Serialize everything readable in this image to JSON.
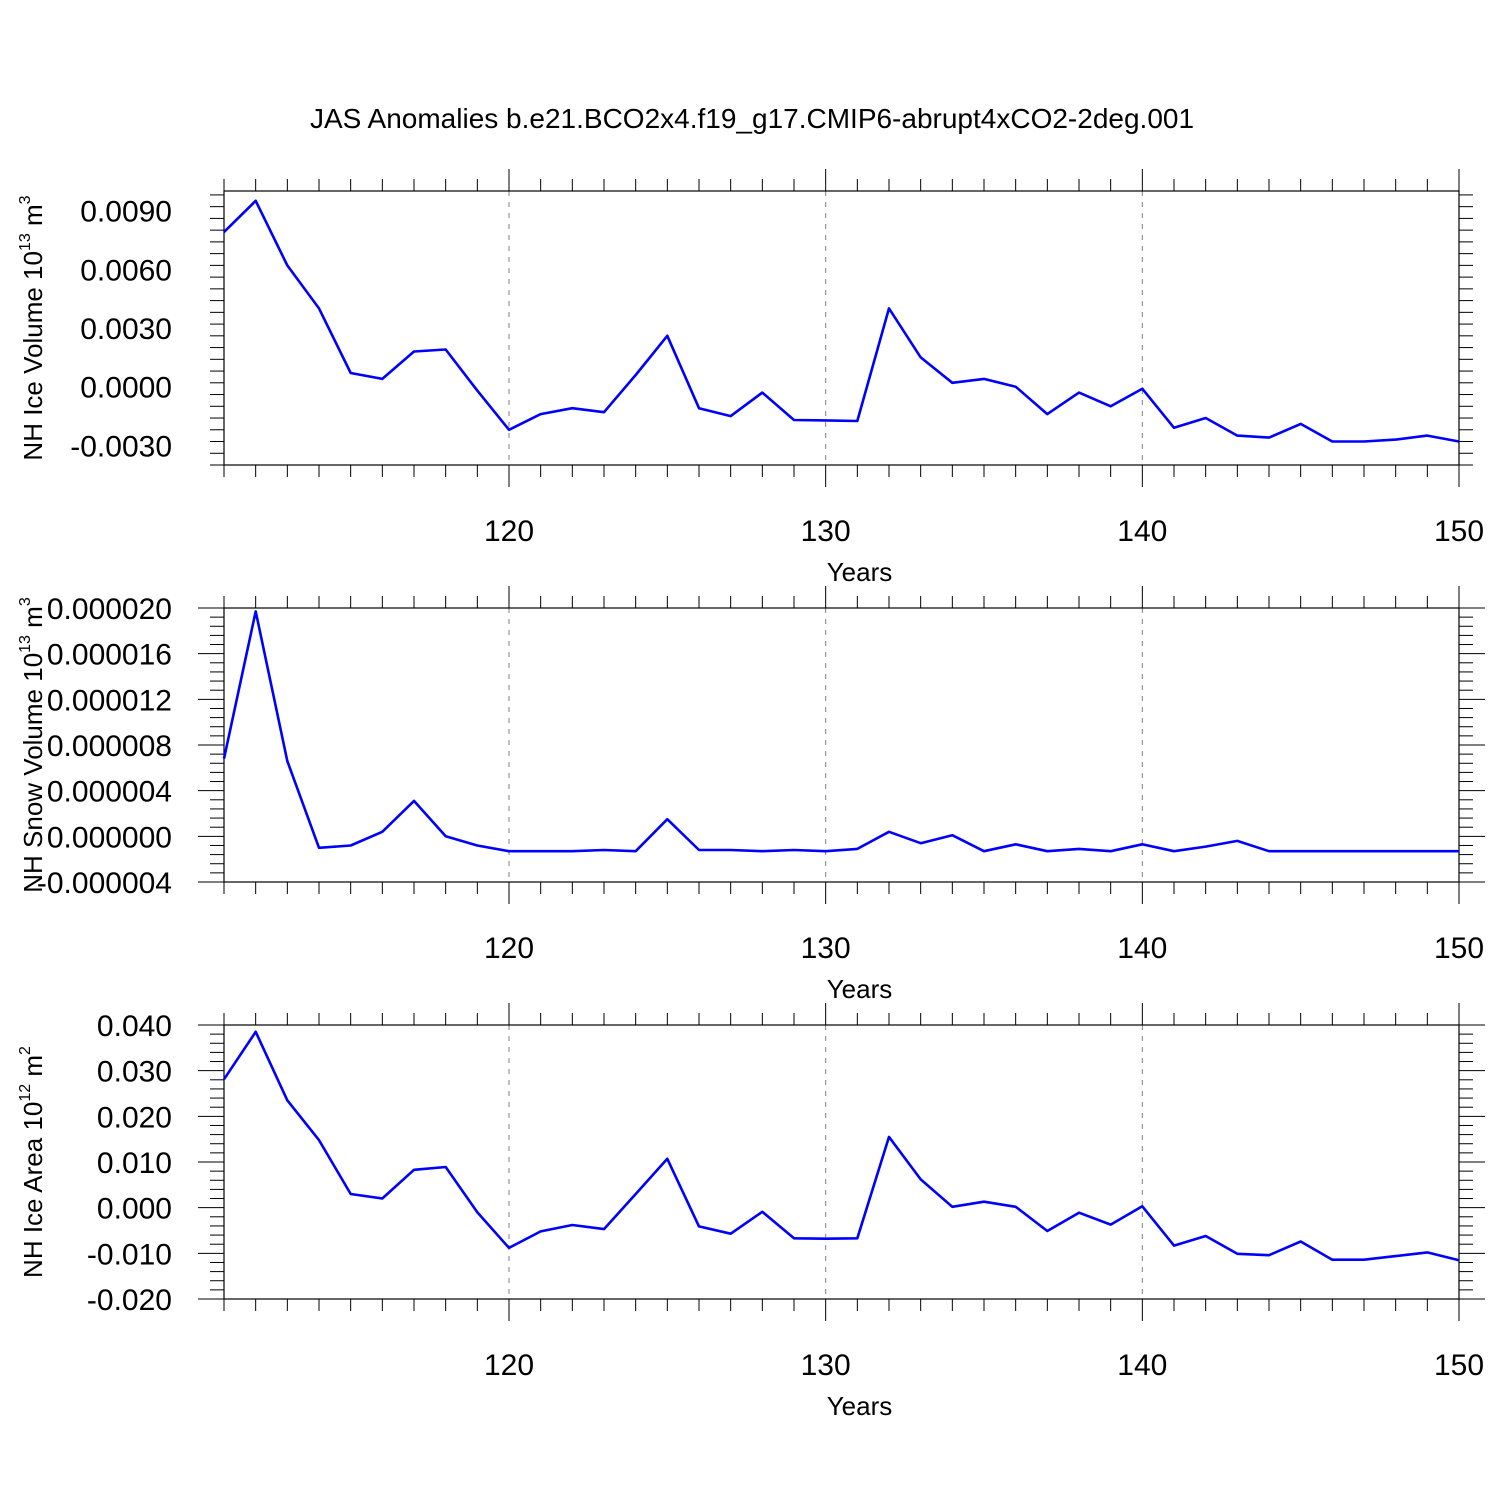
{
  "figure": {
    "title": "JAS Anomalies b.e21.BCO2x4.f19_g17.CMIP6-abrupt4xCO2-2deg.001"
  },
  "colors": {
    "line": "#0000ff",
    "axis": "#000000",
    "grid": "#808080"
  },
  "chart_data": [
    {
      "type": "line",
      "xlabel": "Years",
      "ylabel_main": "NH Ice Volume 10",
      "ylabel_sup1": "13",
      "ylabel_mid": " m",
      "ylabel_sup2": "3",
      "xlim": [
        111,
        150
      ],
      "ylim": [
        -0.004,
        0.01
      ],
      "xticks": [
        120,
        130,
        140,
        150
      ],
      "yticks": [
        -0.003,
        0.0,
        0.003,
        0.006,
        0.009
      ],
      "ytick_labels": [
        "-0.0030",
        "0.0000",
        "0.0030",
        "0.0060",
        "0.0090"
      ],
      "grid": "vertical-dashed",
      "x": [
        111,
        112,
        113,
        114,
        115,
        116,
        117,
        118,
        119,
        120,
        121,
        122,
        123,
        124,
        125,
        126,
        127,
        128,
        129,
        130,
        131,
        132,
        133,
        134,
        135,
        136,
        137,
        138,
        139,
        140,
        141,
        142,
        143,
        144,
        145,
        146,
        147,
        148,
        149,
        150
      ],
      "series": [
        {
          "values": [
            0.0079,
            0.0095,
            0.0062,
            0.004,
            0.0007,
            0.0004,
            0.0018,
            0.0019,
            -0.0002,
            -0.0022,
            -0.0014,
            -0.0011,
            -0.0013,
            0.0006,
            0.0026,
            -0.0011,
            -0.0015,
            -0.0003,
            -0.0017,
            -0.00172,
            -0.00175,
            0.004,
            0.0015,
            0.0002,
            0.0004,
            0.0,
            -0.0014,
            -0.0003,
            -0.001,
            -0.0001,
            -0.0021,
            -0.0016,
            -0.0025,
            -0.0026,
            -0.0019,
            -0.0028,
            -0.0028,
            -0.0027,
            -0.0025,
            -0.0028
          ]
        }
      ]
    },
    {
      "type": "line",
      "xlabel": "Years",
      "ylabel_main": "NH Snow Volume 10",
      "ylabel_sup1": "13",
      "ylabel_mid": " m",
      "ylabel_sup2": "3",
      "xlim": [
        111,
        150
      ],
      "ylim": [
        -4e-06,
        2e-05
      ],
      "xticks": [
        120,
        130,
        140,
        150
      ],
      "yticks": [
        -4e-06,
        0.0,
        4e-06,
        8e-06,
        1.2e-05,
        1.6e-05,
        2e-05
      ],
      "ytick_labels": [
        "-0.000004",
        "0.000000",
        "0.000004",
        "0.000008",
        "0.000012",
        "0.000016",
        "0.000020"
      ],
      "grid": "vertical-dashed",
      "x": [
        111,
        112,
        113,
        114,
        115,
        116,
        117,
        118,
        119,
        120,
        121,
        122,
        123,
        124,
        125,
        126,
        127,
        128,
        129,
        130,
        131,
        132,
        133,
        134,
        135,
        136,
        137,
        138,
        139,
        140,
        141,
        142,
        143,
        144,
        145,
        146,
        147,
        148,
        149,
        150
      ],
      "series": [
        {
          "values": [
            6.8e-06,
            1.97e-05,
            6.6e-06,
            -1e-06,
            -8e-07,
            4e-07,
            3.1e-06,
            0.0,
            -8e-07,
            -1.3e-06,
            -1.3e-06,
            -1.3e-06,
            -1.2e-06,
            -1.3e-06,
            1.5e-06,
            -1.2e-06,
            -1.2e-06,
            -1.3e-06,
            -1.2e-06,
            -1.3e-06,
            -1.1e-06,
            4e-07,
            -6e-07,
            1e-07,
            -1.3e-06,
            -7e-07,
            -1.3e-06,
            -1.1e-06,
            -1.3e-06,
            -7e-07,
            -1.3e-06,
            -9e-07,
            -4e-07,
            -1.3e-06,
            -1.3e-06,
            -1.3e-06,
            -1.3e-06,
            -1.3e-06,
            -1.3e-06,
            -1.3e-06
          ]
        }
      ]
    },
    {
      "type": "line",
      "xlabel": "Years",
      "ylabel_main": "NH Ice Area 10",
      "ylabel_sup1": "12",
      "ylabel_mid": " m",
      "ylabel_sup2": "2",
      "xlim": [
        111,
        150
      ],
      "ylim": [
        -0.02,
        0.04
      ],
      "xticks": [
        120,
        130,
        140,
        150
      ],
      "yticks": [
        -0.02,
        -0.01,
        0.0,
        0.01,
        0.02,
        0.03,
        0.04
      ],
      "ytick_labels": [
        "-0.020",
        "-0.010",
        "0.000",
        "0.010",
        "0.020",
        "0.030",
        "0.040"
      ],
      "grid": "vertical-dashed",
      "x": [
        111,
        112,
        113,
        114,
        115,
        116,
        117,
        118,
        119,
        120,
        121,
        122,
        123,
        124,
        125,
        126,
        127,
        128,
        129,
        130,
        131,
        132,
        133,
        134,
        135,
        136,
        137,
        138,
        139,
        140,
        141,
        142,
        143,
        144,
        145,
        146,
        147,
        148,
        149,
        150
      ],
      "series": [
        {
          "values": [
            0.0281,
            0.0385,
            0.0235,
            0.0148,
            0.003,
            0.002,
            0.0083,
            0.0089,
            -0.001,
            -0.0088,
            -0.0052,
            -0.0038,
            -0.0047,
            0.003,
            0.0107,
            -0.0041,
            -0.0057,
            -0.0009,
            -0.0067,
            -0.0068,
            -0.0067,
            0.0155,
            0.0062,
            0.0002,
            0.0013,
            0.0002,
            -0.0051,
            -0.0011,
            -0.0037,
            0.0003,
            -0.0083,
            -0.0062,
            -0.0101,
            -0.0104,
            -0.0074,
            -0.0114,
            -0.0114,
            -0.0106,
            -0.0098,
            -0.0115
          ]
        }
      ]
    }
  ]
}
